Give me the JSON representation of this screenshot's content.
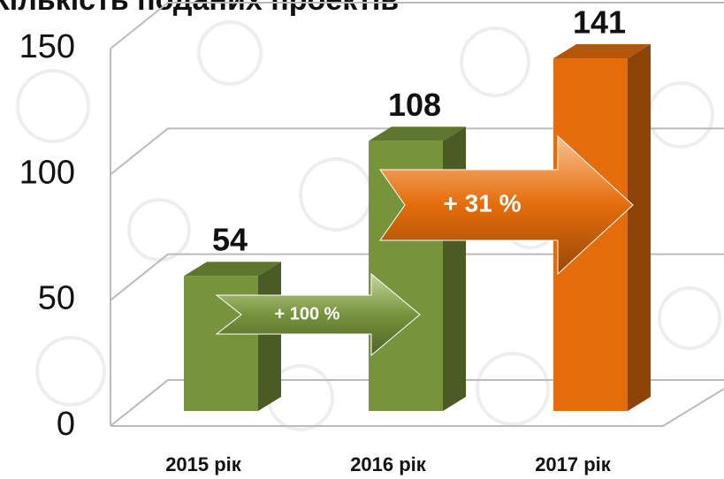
{
  "chart_data": {
    "type": "bar3d",
    "title": "Кількість поданих проектів",
    "categories": [
      "2015 рік",
      "2016 рік",
      "2017 рік"
    ],
    "values": [
      54,
      108,
      141
    ],
    "colors": [
      "#77933c",
      "#77933c",
      "#e46c0a"
    ],
    "ylim": [
      0,
      150
    ],
    "yticks": [
      0,
      50,
      100,
      150
    ],
    "grid": true,
    "annotations": [
      "+ 100 %",
      "+ 31 %"
    ]
  }
}
